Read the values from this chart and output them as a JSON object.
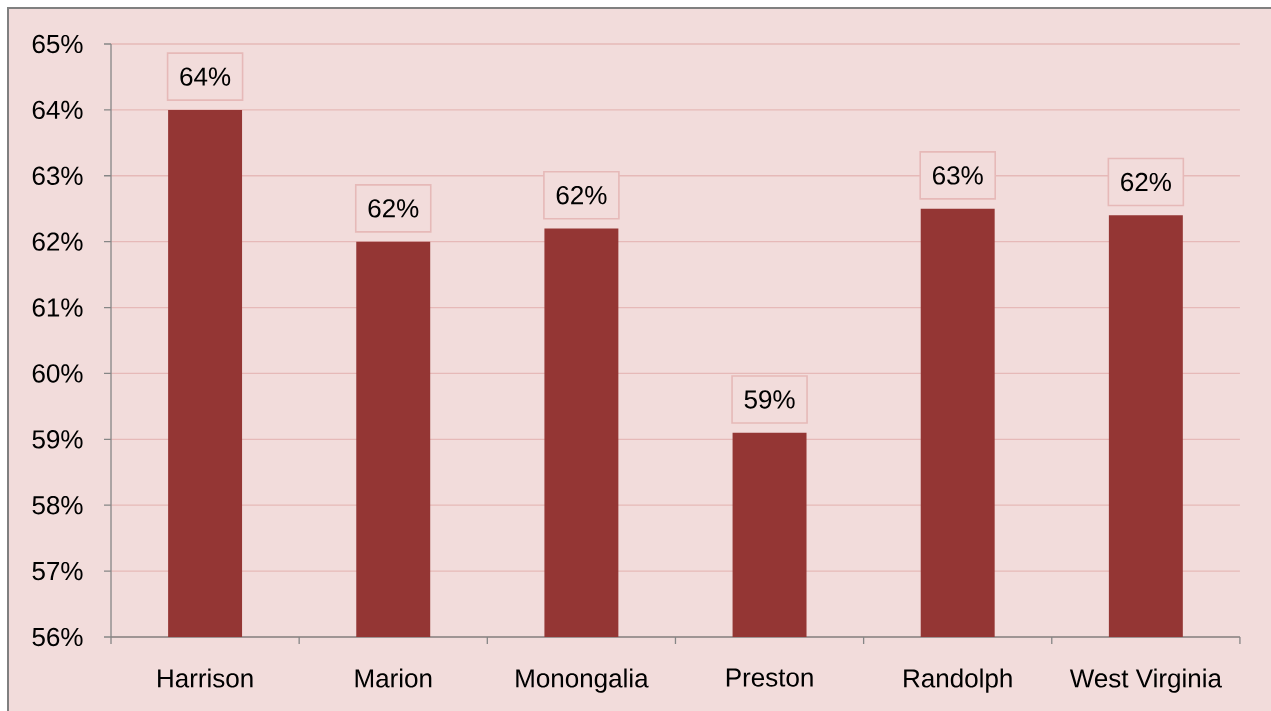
{
  "chart_data": {
    "type": "bar",
    "categories": [
      "Harrison",
      "Marion",
      "Monongalia",
      "Preston",
      "Randolph",
      "West Virginia"
    ],
    "values": [
      64.0,
      62.0,
      62.2,
      59.1,
      62.5,
      62.4
    ],
    "color": "#943634",
    "value_labels": [
      "64%",
      "62%",
      "62%",
      "59%",
      "63%",
      "62%"
    ],
    "ylim": [
      56,
      65
    ],
    "yticks": [
      {
        "value": 56,
        "label": "56%"
      },
      {
        "value": 57,
        "label": "57%"
      },
      {
        "value": 58,
        "label": "58%"
      },
      {
        "value": 59,
        "label": "59%"
      },
      {
        "value": 60,
        "label": "60%"
      },
      {
        "value": 61,
        "label": "61%"
      },
      {
        "value": 62,
        "label": "62%"
      },
      {
        "value": 63,
        "label": "63%"
      },
      {
        "value": 64,
        "label": "64%"
      },
      {
        "value": 65,
        "label": "65%"
      }
    ],
    "grid": "y"
  }
}
